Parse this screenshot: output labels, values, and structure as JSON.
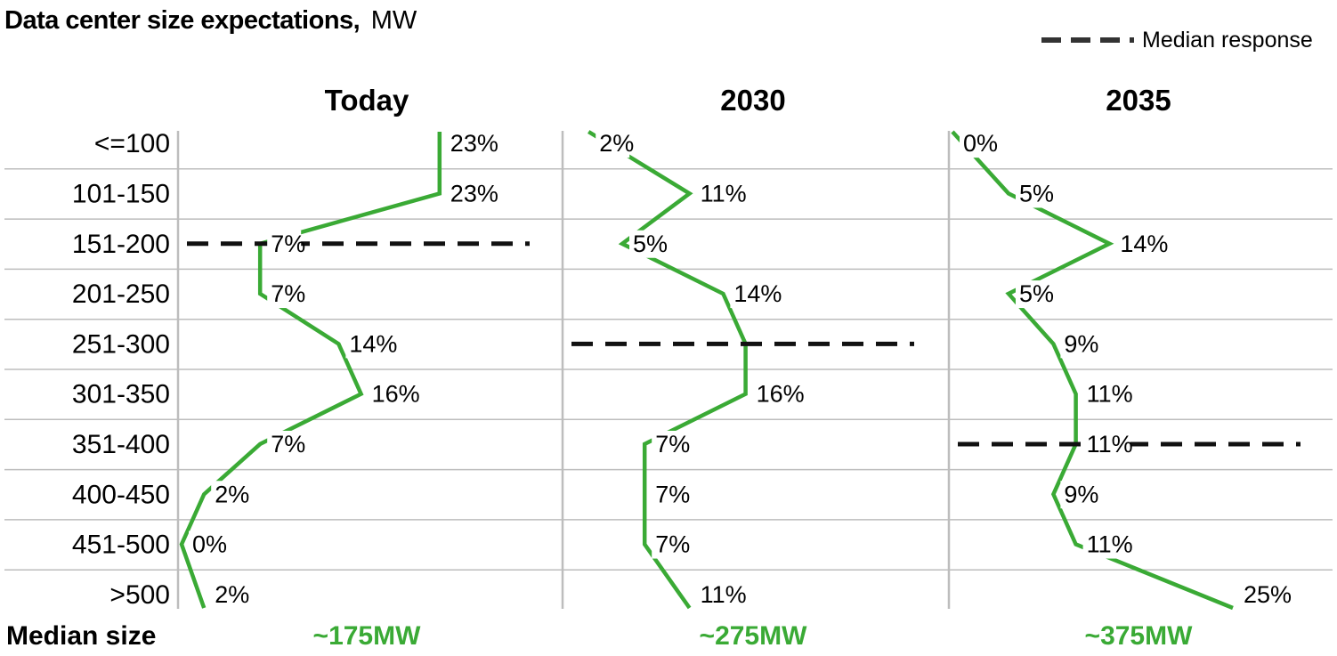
{
  "chart_data": {
    "type": "line",
    "title": "Data center size expectations,",
    "title_unit": "MW",
    "legend": {
      "label": "Median response",
      "position": "top-right"
    },
    "categories": [
      "<=100",
      "101-150",
      "151-200",
      "201-250",
      "251-300",
      "301-350",
      "351-400",
      "400-450",
      "451-500",
      ">500"
    ],
    "x_range": [
      0,
      25
    ],
    "value_unit": "%",
    "panels": [
      {
        "name": "Today",
        "values": [
          23,
          23,
          7,
          7,
          14,
          16,
          7,
          2,
          0,
          2
        ],
        "median_category": "151-200",
        "median_size": "~175MW"
      },
      {
        "name": "2030",
        "values": [
          2,
          11,
          5,
          14,
          16,
          16,
          7,
          7,
          7,
          11
        ],
        "labels": [
          "2%",
          "11%",
          "5%",
          "14%",
          "",
          "16%",
          "7%",
          "7%",
          "7%",
          "11%"
        ],
        "median_category": "251-300",
        "median_size": "~275MW"
      },
      {
        "name": "2035",
        "values": [
          0,
          5,
          14,
          5,
          9,
          11,
          11,
          9,
          11,
          25
        ],
        "median_category": "351-400",
        "median_size": "~375MW"
      }
    ],
    "median_size_label": "Median size",
    "colors": {
      "line": "#3aaa35",
      "median_value": "#3aaa35",
      "dash": "#111111",
      "grid": "#bdbdbd",
      "legend_dash": "#333333"
    }
  }
}
